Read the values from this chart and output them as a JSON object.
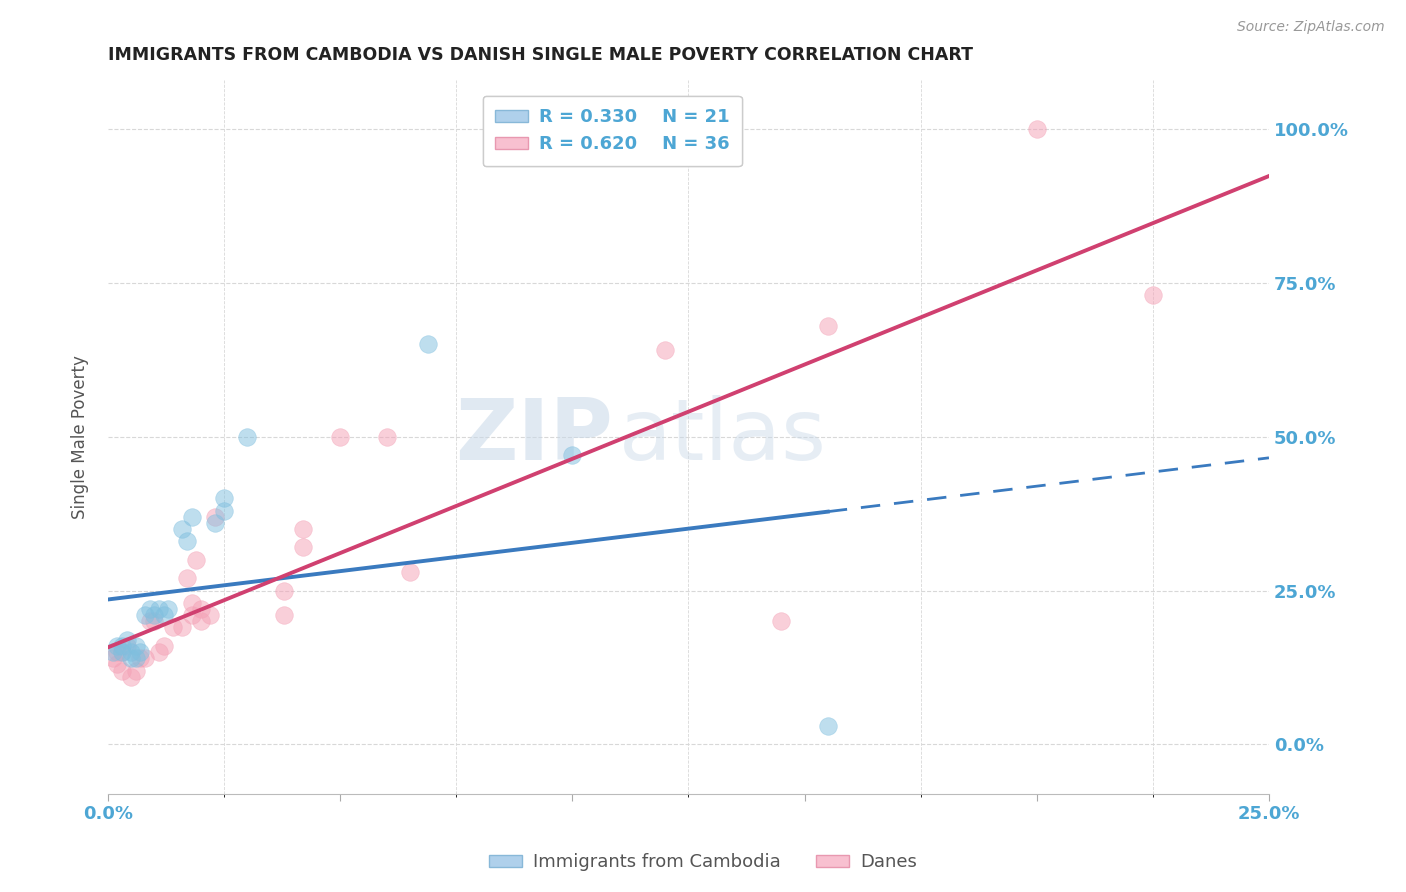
{
  "title": "IMMIGRANTS FROM CAMBODIA VS DANISH SINGLE MALE POVERTY CORRELATION CHART",
  "source": "Source: ZipAtlas.com",
  "legend_label_cambodia": "Immigrants from Cambodia",
  "legend_label_danes": "Danes",
  "color_cambodia": "#7fbfdf",
  "color_danes": "#f4a0b5",
  "color_line_cambodia": "#3a7abf",
  "color_line_danes": "#d04070",
  "background_color": "#ffffff",
  "watermark_zip": "ZIP",
  "watermark_atlas": "atlas",
  "xlim": [
    0.0,
    0.25
  ],
  "ylim": [
    -0.08,
    1.08
  ],
  "ytick_vals": [
    0.0,
    0.25,
    0.5,
    0.75,
    1.0
  ],
  "ytick_labels": [
    "0.0%",
    "25.0%",
    "50.0%",
    "75.0%",
    "100.0%"
  ],
  "cambodia_x": [
    0.001,
    0.002,
    0.003,
    0.003,
    0.004,
    0.005,
    0.005,
    0.006,
    0.006,
    0.007,
    0.008,
    0.009,
    0.01,
    0.011,
    0.012,
    0.013,
    0.016,
    0.017,
    0.018,
    0.023,
    0.025,
    0.025,
    0.03,
    0.069,
    0.1,
    0.155
  ],
  "cambodia_y": [
    0.15,
    0.16,
    0.15,
    0.16,
    0.17,
    0.14,
    0.15,
    0.14,
    0.16,
    0.15,
    0.21,
    0.22,
    0.21,
    0.22,
    0.21,
    0.22,
    0.35,
    0.33,
    0.37,
    0.36,
    0.4,
    0.38,
    0.5,
    0.65,
    0.47,
    0.03
  ],
  "danes_x": [
    0.001,
    0.002,
    0.002,
    0.003,
    0.003,
    0.004,
    0.005,
    0.006,
    0.007,
    0.008,
    0.009,
    0.01,
    0.011,
    0.012,
    0.014,
    0.016,
    0.017,
    0.018,
    0.018,
    0.019,
    0.02,
    0.02,
    0.022,
    0.023,
    0.038,
    0.038,
    0.042,
    0.042,
    0.05,
    0.06,
    0.065,
    0.12,
    0.145,
    0.155,
    0.2,
    0.225
  ],
  "danes_y": [
    0.14,
    0.13,
    0.15,
    0.12,
    0.15,
    0.16,
    0.11,
    0.12,
    0.14,
    0.14,
    0.2,
    0.2,
    0.15,
    0.16,
    0.19,
    0.19,
    0.27,
    0.21,
    0.23,
    0.3,
    0.2,
    0.22,
    0.21,
    0.37,
    0.25,
    0.21,
    0.35,
    0.32,
    0.5,
    0.5,
    0.28,
    0.64,
    0.2,
    0.68,
    1.0,
    0.73
  ],
  "cam_line_x0": 0.0,
  "cam_line_x_solid_end": 0.155,
  "cam_line_x_dash_end": 0.25,
  "dan_line_x0": 0.0,
  "dan_line_x1": 0.25
}
